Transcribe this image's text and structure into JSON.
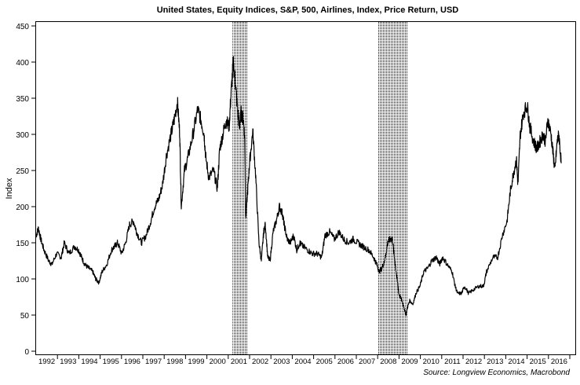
{
  "chart_data": {
    "type": "line",
    "title": "United States, Equity Indices, S&P, 500, Airlines, Index, Price Return, USD",
    "ylabel": "Index",
    "xlabel": "",
    "source": "Source: Longview Economics, Macrobond",
    "ylim": [
      0,
      450
    ],
    "xlim": [
      1992,
      2017
    ],
    "yticks": [
      0,
      50,
      100,
      150,
      200,
      250,
      300,
      350,
      400,
      450
    ],
    "xtick_labels": [
      "1992",
      "1993",
      "1994",
      "1995",
      "1996",
      "1997",
      "1998",
      "1999",
      "2000",
      "2001",
      "2002",
      "2003",
      "2004",
      "2005",
      "2006",
      "2007",
      "2008",
      "2009",
      "2010",
      "2011",
      "2012",
      "2013",
      "2014",
      "2015",
      "2016"
    ],
    "grid": false,
    "recessions": [
      [
        2001.2,
        2001.9
      ],
      [
        2008.0,
        2009.4
      ]
    ],
    "series": [
      {
        "name": "S&P 500 Airlines Index",
        "color": "#000000",
        "x": [
          1992.0,
          1992.11,
          1992.22,
          1992.37,
          1992.59,
          1992.74,
          1992.96,
          1993.18,
          1993.32,
          1993.54,
          1993.8,
          1993.99,
          1994.13,
          1994.28,
          1994.46,
          1994.65,
          1994.79,
          1994.94,
          1995.09,
          1995.31,
          1995.53,
          1995.68,
          1995.82,
          1996.01,
          1996.19,
          1996.38,
          1996.56,
          1996.71,
          1996.93,
          1997.15,
          1997.37,
          1997.55,
          1997.74,
          1997.92,
          1998.1,
          1998.32,
          1998.47,
          1998.62,
          1998.73,
          1998.8,
          1998.95,
          1999.13,
          1999.35,
          1999.57,
          1999.72,
          1999.87,
          1999.94,
          2000.09,
          2000.31,
          2000.49,
          2000.6,
          2000.75,
          2000.9,
          2001.04,
          2001.12,
          2001.23,
          2001.34,
          2001.45,
          2001.52,
          2001.6,
          2001.71,
          2001.78,
          2001.82,
          2001.93,
          2002.0,
          2002.15,
          2002.29,
          2002.44,
          2002.55,
          2002.66,
          2002.74,
          2002.85,
          2002.96,
          2003.1,
          2003.25,
          2003.4,
          2003.54,
          2003.62,
          2003.76,
          2003.91,
          2004.06,
          2004.21,
          2004.35,
          2004.5,
          2004.72,
          2004.94,
          2005.16,
          2005.38,
          2005.53,
          2005.75,
          2005.97,
          2006.19,
          2006.41,
          2006.63,
          2006.85,
          2007.07,
          2007.29,
          2007.59,
          2007.81,
          2007.96,
          2008.07,
          2008.21,
          2008.36,
          2008.47,
          2008.58,
          2008.69,
          2008.8,
          2008.91,
          2008.99,
          2009.13,
          2009.24,
          2009.32,
          2009.39,
          2009.5,
          2009.65,
          2009.79,
          2009.98,
          2010.16,
          2010.35,
          2010.53,
          2010.75,
          2010.9,
          2011.04,
          2011.26,
          2011.49,
          2011.63,
          2011.74,
          2011.93,
          2012.07,
          2012.26,
          2012.48,
          2012.74,
          2012.96,
          2013.1,
          2013.4,
          2013.62,
          2013.84,
          2014.06,
          2014.21,
          2014.35,
          2014.5,
          2014.57,
          2014.68,
          2014.83,
          2015.01,
          2015.13,
          2015.31,
          2015.46,
          2015.6,
          2015.75,
          2015.86,
          2015.97,
          2016.12,
          2016.23,
          2016.3,
          2016.41,
          2016.49,
          2016.6
        ],
        "y": [
          160,
          170,
          155,
          140,
          125,
          120,
          135,
          130,
          150,
          135,
          145,
          140,
          130,
          120,
          115,
          110,
          100,
          95,
          110,
          120,
          140,
          145,
          150,
          135,
          150,
          175,
          180,
          165,
          150,
          160,
          180,
          200,
          210,
          230,
          270,
          300,
          320,
          345,
          300,
          200,
          250,
          270,
          300,
          335,
          320,
          300,
          270,
          240,
          250,
          225,
          280,
          300,
          320,
          310,
          350,
          400,
          370,
          330,
          310,
          330,
          320,
          290,
          185,
          230,
          260,
          305,
          240,
          150,
          125,
          165,
          175,
          130,
          125,
          165,
          180,
          200,
          190,
          175,
          155,
          150,
          160,
          140,
          150,
          145,
          140,
          135,
          135,
          130,
          160,
          165,
          155,
          165,
          155,
          150,
          155,
          150,
          145,
          140,
          130,
          120,
          110,
          115,
          130,
          150,
          155,
          155,
          125,
          100,
          80,
          70,
          60,
          50,
          60,
          70,
          65,
          80,
          90,
          110,
          115,
          125,
          130,
          120,
          130,
          120,
          110,
          90,
          80,
          80,
          90,
          80,
          85,
          90,
          90,
          110,
          130,
          130,
          160,
          180,
          220,
          245,
          265,
          230,
          300,
          330,
          340,
          310,
          290,
          280,
          290,
          300,
          290,
          320,
          300,
          270,
          250,
          290,
          300,
          260
        ]
      }
    ]
  }
}
